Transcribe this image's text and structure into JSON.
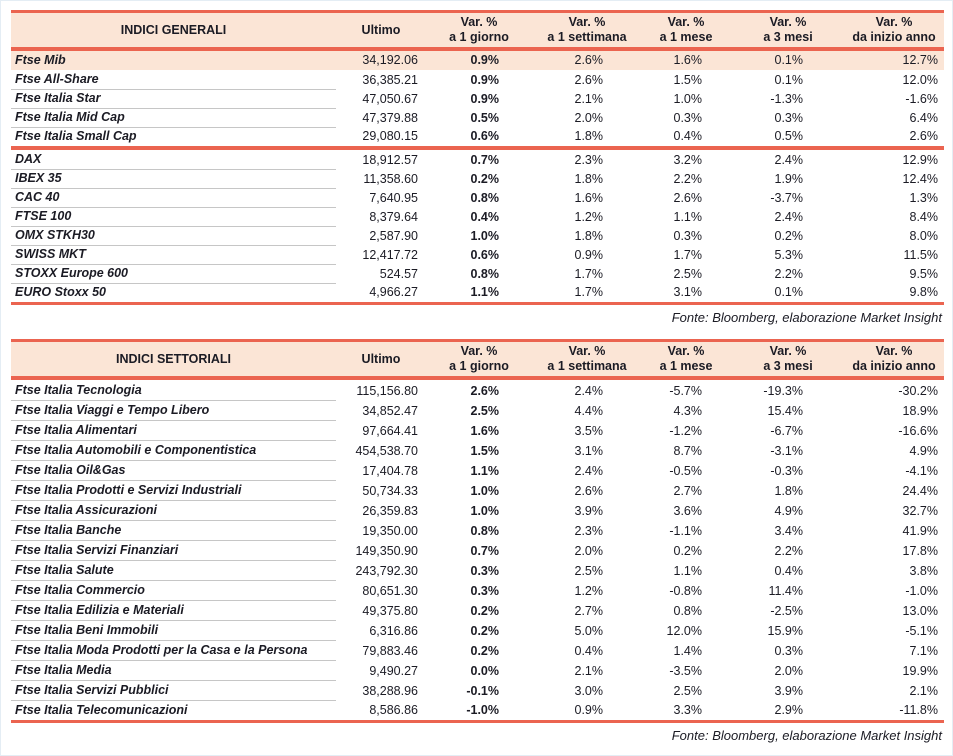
{
  "colors": {
    "accent": "#eb6450",
    "header_bg": "#fbe5d6",
    "highlight_row_bg": "#fbe5d6",
    "row_divider": "#c6c6c6",
    "text": "#1b1b24"
  },
  "headers": {
    "var_label": "Var. %",
    "ultimo": "Ultimo",
    "periods": [
      "a 1 giorno",
      "a 1 settimana",
      "a 1 mese",
      "a 3 mesi",
      "da inizio anno"
    ]
  },
  "source_note": "Fonte: Bloomberg, elaborazione Market Insight",
  "tables": [
    {
      "key": "general",
      "title": "INDICI GENERALI",
      "rows": [
        {
          "name": "Ftse Mib",
          "ultimo": "34,192.06",
          "d1": "0.9%",
          "w1": "2.6%",
          "m1": "1.6%",
          "m3": "0.1%",
          "ytd": "12.7%",
          "highlight": true
        },
        {
          "name": "Ftse All-Share",
          "ultimo": "36,385.21",
          "d1": "0.9%",
          "w1": "2.6%",
          "m1": "1.5%",
          "m3": "0.1%",
          "ytd": "12.0%"
        },
        {
          "name": "Ftse Italia Star",
          "ultimo": "47,050.67",
          "d1": "0.9%",
          "w1": "2.1%",
          "m1": "1.0%",
          "m3": "-1.3%",
          "ytd": "-1.6%"
        },
        {
          "name": "Ftse Italia Mid Cap",
          "ultimo": "47,379.88",
          "d1": "0.5%",
          "w1": "2.0%",
          "m1": "0.3%",
          "m3": "0.3%",
          "ytd": "6.4%"
        },
        {
          "name": "Ftse Italia Small Cap",
          "ultimo": "29,080.15",
          "d1": "0.6%",
          "w1": "1.8%",
          "m1": "0.4%",
          "m3": "0.5%",
          "ytd": "2.6%"
        },
        {
          "name": "DAX",
          "ultimo": "18,912.57",
          "d1": "0.7%",
          "w1": "2.3%",
          "m1": "3.2%",
          "m3": "2.4%",
          "ytd": "12.9%",
          "separator_before": true
        },
        {
          "name": "IBEX 35",
          "ultimo": "11,358.60",
          "d1": "0.2%",
          "w1": "1.8%",
          "m1": "2.2%",
          "m3": "1.9%",
          "ytd": "12.4%"
        },
        {
          "name": "CAC 40",
          "ultimo": "7,640.95",
          "d1": "0.8%",
          "w1": "1.6%",
          "m1": "2.6%",
          "m3": "-3.7%",
          "ytd": "1.3%"
        },
        {
          "name": "FTSE 100",
          "ultimo": "8,379.64",
          "d1": "0.4%",
          "w1": "1.2%",
          "m1": "1.1%",
          "m3": "2.4%",
          "ytd": "8.4%"
        },
        {
          "name": "OMX STKH30",
          "ultimo": "2,587.90",
          "d1": "1.0%",
          "w1": "1.8%",
          "m1": "0.3%",
          "m3": "0.2%",
          "ytd": "8.0%"
        },
        {
          "name": "SWISS MKT",
          "ultimo": "12,417.72",
          "d1": "0.6%",
          "w1": "0.9%",
          "m1": "1.7%",
          "m3": "5.3%",
          "ytd": "11.5%"
        },
        {
          "name": "STOXX Europe 600",
          "ultimo": "524.57",
          "d1": "0.8%",
          "w1": "1.7%",
          "m1": "2.5%",
          "m3": "2.2%",
          "ytd": "9.5%"
        },
        {
          "name": "EURO Stoxx 50",
          "ultimo": "4,966.27",
          "d1": "1.1%",
          "w1": "1.7%",
          "m1": "3.1%",
          "m3": "0.1%",
          "ytd": "9.8%"
        }
      ]
    },
    {
      "key": "sector",
      "title": "INDICI SETTORIALI",
      "rows": [
        {
          "name": "Ftse Italia Tecnologia",
          "ultimo": "115,156.80",
          "d1": "2.6%",
          "w1": "2.4%",
          "m1": "-5.7%",
          "m3": "-19.3%",
          "ytd": "-30.2%"
        },
        {
          "name": "Ftse Italia Viaggi e Tempo Libero",
          "ultimo": "34,852.47",
          "d1": "2.5%",
          "w1": "4.4%",
          "m1": "4.3%",
          "m3": "15.4%",
          "ytd": "18.9%"
        },
        {
          "name": "Ftse Italia Alimentari",
          "ultimo": "97,664.41",
          "d1": "1.6%",
          "w1": "3.5%",
          "m1": "-1.2%",
          "m3": "-6.7%",
          "ytd": "-16.6%"
        },
        {
          "name": "Ftse Italia Automobili e Componentistica",
          "ultimo": "454,538.70",
          "d1": "1.5%",
          "w1": "3.1%",
          "m1": "8.7%",
          "m3": "-3.1%",
          "ytd": "4.9%"
        },
        {
          "name": "Ftse Italia Oil&Gas",
          "ultimo": "17,404.78",
          "d1": "1.1%",
          "w1": "2.4%",
          "m1": "-0.5%",
          "m3": "-0.3%",
          "ytd": "-4.1%"
        },
        {
          "name": "Ftse Italia Prodotti e Servizi Industriali",
          "ultimo": "50,734.33",
          "d1": "1.0%",
          "w1": "2.6%",
          "m1": "2.7%",
          "m3": "1.8%",
          "ytd": "24.4%"
        },
        {
          "name": "Ftse Italia Assicurazioni",
          "ultimo": "26,359.83",
          "d1": "1.0%",
          "w1": "3.9%",
          "m1": "3.6%",
          "m3": "4.9%",
          "ytd": "32.7%"
        },
        {
          "name": "Ftse Italia Banche",
          "ultimo": "19,350.00",
          "d1": "0.8%",
          "w1": "2.3%",
          "m1": "-1.1%",
          "m3": "3.4%",
          "ytd": "41.9%"
        },
        {
          "name": "Ftse Italia Servizi Finanziari",
          "ultimo": "149,350.90",
          "d1": "0.7%",
          "w1": "2.0%",
          "m1": "0.2%",
          "m3": "2.2%",
          "ytd": "17.8%"
        },
        {
          "name": "Ftse Italia Salute",
          "ultimo": "243,792.30",
          "d1": "0.3%",
          "w1": "2.5%",
          "m1": "1.1%",
          "m3": "0.4%",
          "ytd": "3.8%"
        },
        {
          "name": "Ftse Italia Commercio",
          "ultimo": "80,651.30",
          "d1": "0.3%",
          "w1": "1.2%",
          "m1": "-0.8%",
          "m3": "11.4%",
          "ytd": "-1.0%"
        },
        {
          "name": "Ftse Italia Edilizia e Materiali",
          "ultimo": "49,375.80",
          "d1": "0.2%",
          "w1": "2.7%",
          "m1": "0.8%",
          "m3": "-2.5%",
          "ytd": "13.0%"
        },
        {
          "name": "Ftse Italia Beni Immobili",
          "ultimo": "6,316.86",
          "d1": "0.2%",
          "w1": "5.0%",
          "m1": "12.0%",
          "m3": "15.9%",
          "ytd": "-5.1%"
        },
        {
          "name": "Ftse Italia Moda Prodotti per la Casa e la Persona",
          "ultimo": "79,883.46",
          "d1": "0.2%",
          "w1": "0.4%",
          "m1": "1.4%",
          "m3": "0.3%",
          "ytd": "7.1%"
        },
        {
          "name": "Ftse Italia Media",
          "ultimo": "9,490.27",
          "d1": "0.0%",
          "w1": "2.1%",
          "m1": "-3.5%",
          "m3": "2.0%",
          "ytd": "19.9%"
        },
        {
          "name": "Ftse Italia Servizi Pubblici",
          "ultimo": "38,288.96",
          "d1": "-0.1%",
          "w1": "3.0%",
          "m1": "2.5%",
          "m3": "3.9%",
          "ytd": "2.1%"
        },
        {
          "name": "Ftse Italia Telecomunicazioni",
          "ultimo": "8,586.86",
          "d1": "-1.0%",
          "w1": "0.9%",
          "m1": "3.3%",
          "m3": "2.9%",
          "ytd": "-11.8%"
        }
      ]
    }
  ]
}
